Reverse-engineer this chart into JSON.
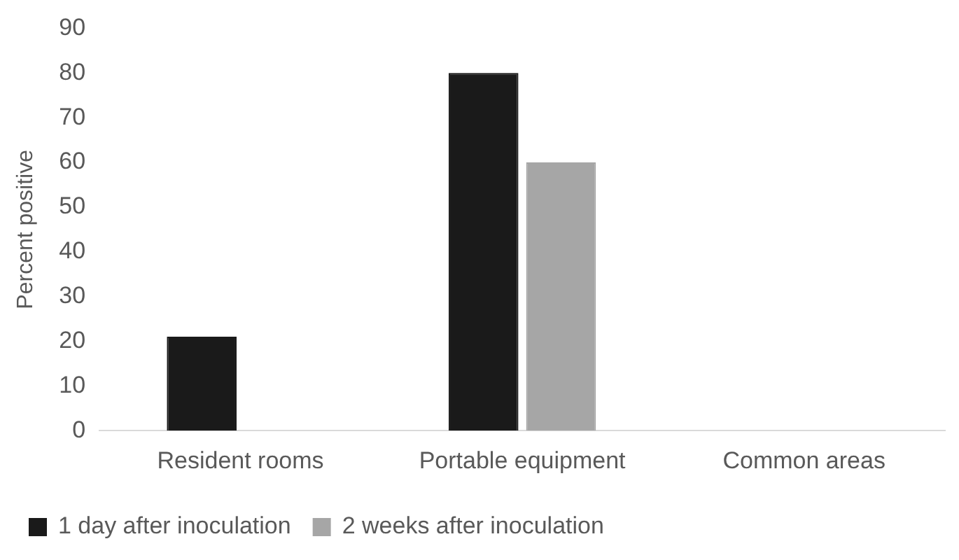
{
  "chart_data": {
    "type": "bar",
    "ylabel": "Percent positive",
    "categories": [
      "Resident rooms",
      "Portable equipment",
      "Common areas"
    ],
    "series": [
      {
        "name": "1 day after inoculation",
        "color": "#1a1a1a",
        "values": [
          21,
          80,
          0
        ]
      },
      {
        "name": "2 weeks after inoculation",
        "color": "#a6a6a6",
        "values": [
          0,
          60,
          0
        ]
      }
    ],
    "ylim": [
      0,
      90
    ],
    "yticks": [
      0,
      10,
      20,
      30,
      40,
      50,
      60,
      70,
      80,
      90
    ],
    "grid": false,
    "legend": "bottom"
  }
}
